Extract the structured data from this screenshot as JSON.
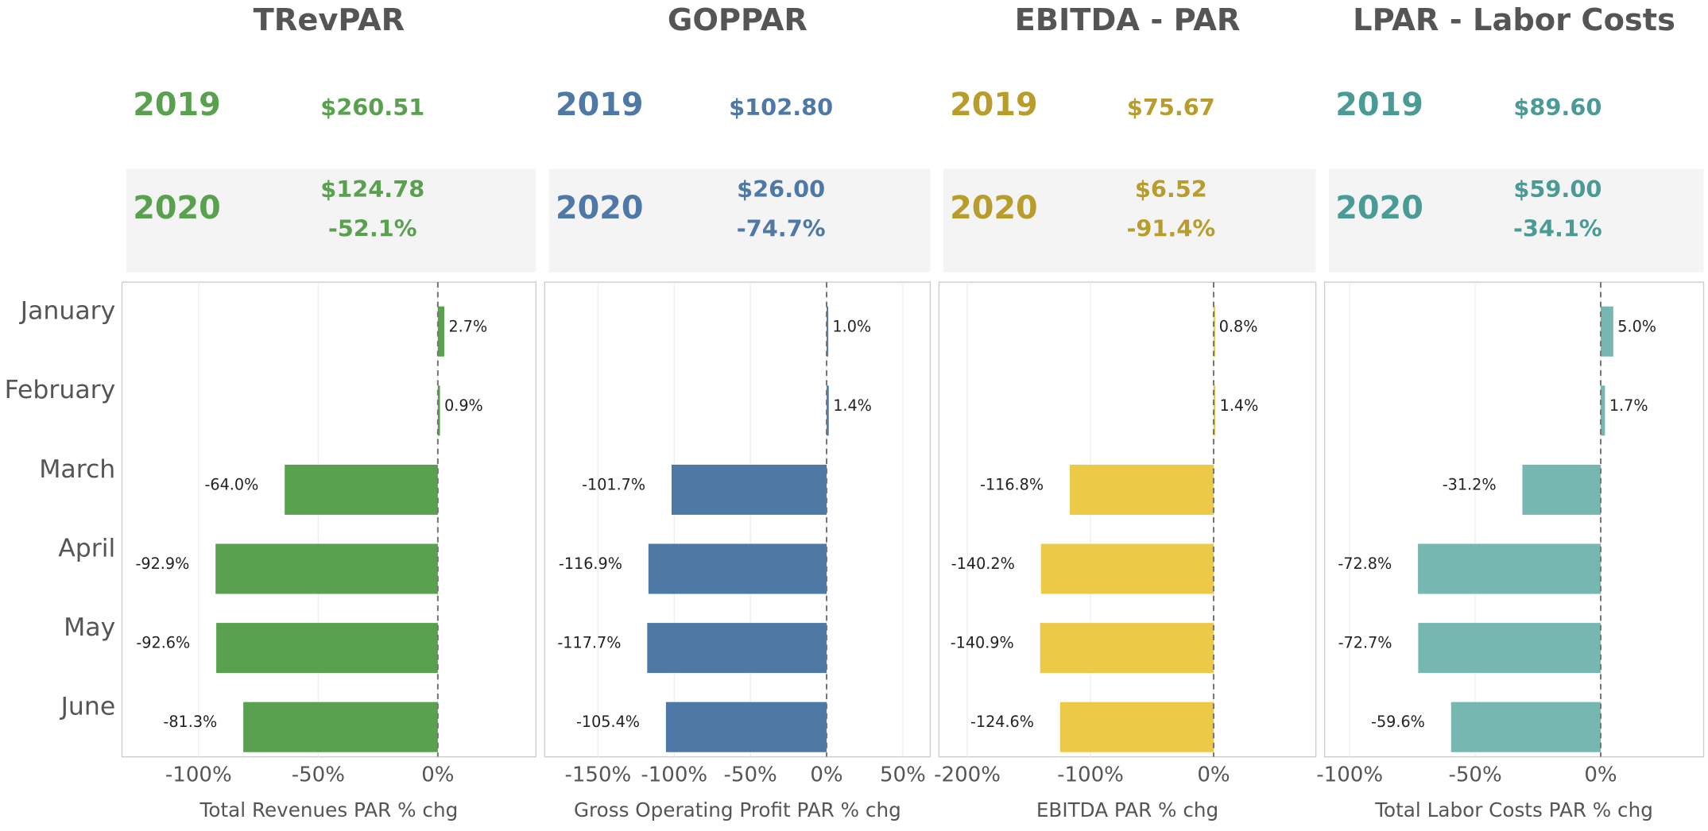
{
  "categories": [
    "January",
    "February",
    "March",
    "April",
    "May",
    "June"
  ],
  "chart_data": [
    {
      "type": "bar",
      "title": "TRevPAR",
      "color": "#59a14f",
      "text_color": "#59a14f",
      "kpi": {
        "year1": "2019",
        "value1": "$260.51",
        "year2": "2020",
        "value2": "$124.78",
        "change": "-52.1%"
      },
      "values": [
        2.7,
        0.9,
        -64.0,
        -92.9,
        -92.6,
        -81.3
      ],
      "value_labels": [
        "2.7%",
        "0.9%",
        "-64.0%",
        "-92.9%",
        "-92.6%",
        "-81.3%"
      ],
      "xlim": [
        -132,
        41
      ],
      "xticks": [
        {
          "value": -100,
          "label": "-100%"
        },
        {
          "value": -50,
          "label": "-50%"
        },
        {
          "value": 0,
          "label": "0%"
        }
      ],
      "xlabel": "Total Revenues PAR % chg",
      "grid": true
    },
    {
      "type": "bar",
      "title": "GOPPAR",
      "color": "#4e79a7",
      "text_color": "#4e79a7",
      "kpi": {
        "year1": "2019",
        "value1": "$102.80",
        "year2": "2020",
        "value2": "$26.00",
        "change": "-74.7%"
      },
      "values": [
        1.0,
        1.4,
        -101.7,
        -116.9,
        -117.7,
        -105.4
      ],
      "value_labels": [
        "1.0%",
        "1.4%",
        "-101.7%",
        "-116.9%",
        "-117.7%",
        "-105.4%"
      ],
      "xlim": [
        -185,
        68
      ],
      "xticks": [
        {
          "value": -150,
          "label": "-150%"
        },
        {
          "value": -100,
          "label": "-100%"
        },
        {
          "value": -50,
          "label": "-50%"
        },
        {
          "value": 0,
          "label": "0%"
        },
        {
          "value": 50,
          "label": "50%"
        }
      ],
      "xlabel": "Gross Operating Profit PAR % chg",
      "grid": true
    },
    {
      "type": "bar",
      "title": "EBITDA - PAR",
      "color": "#edc948",
      "text_color": "#b89c2c",
      "kpi": {
        "year1": "2019",
        "value1": "$75.67",
        "year2": "2020",
        "value2": "$6.52",
        "change": "-91.4%"
      },
      "values": [
        0.8,
        1.4,
        -116.8,
        -140.2,
        -140.9,
        -124.6
      ],
      "value_labels": [
        "0.8%",
        "1.4%",
        "-116.8%",
        "-140.2%",
        "-140.9%",
        "-124.6%"
      ],
      "xlim": [
        -223,
        83
      ],
      "xticks": [
        {
          "value": -200,
          "label": "-200%"
        },
        {
          "value": -100,
          "label": "-100%"
        },
        {
          "value": 0,
          "label": "0%"
        }
      ],
      "xlabel": "EBITDA PAR % chg",
      "grid": true
    },
    {
      "type": "bar",
      "title": "LPAR - Labor Costs",
      "color": "#76b7b2",
      "text_color": "#4a9a96",
      "kpi": {
        "year1": "2019",
        "value1": "$89.60",
        "year2": "2020",
        "value2": "$59.00",
        "change": "-34.1%"
      },
      "values": [
        5.0,
        1.7,
        -31.2,
        -72.8,
        -72.7,
        -59.6
      ],
      "value_labels": [
        "5.0%",
        "1.7%",
        "-31.2%",
        "-72.8%",
        "-72.7%",
        "-59.6%"
      ],
      "xlim": [
        -110,
        41
      ],
      "xticks": [
        {
          "value": -100,
          "label": "-100%"
        },
        {
          "value": -50,
          "label": "-50%"
        },
        {
          "value": 0,
          "label": "0%"
        }
      ],
      "xlabel": "Total Labor Costs PAR % chg",
      "grid": true
    }
  ]
}
